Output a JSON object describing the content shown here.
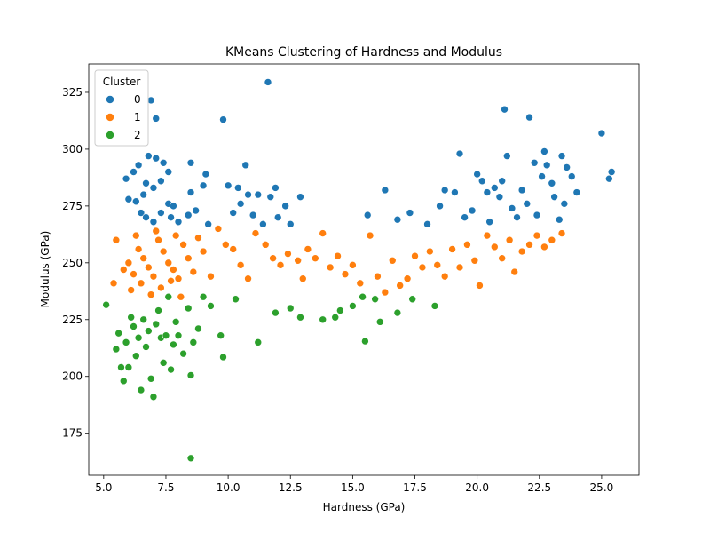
{
  "chart_data": {
    "type": "scatter",
    "title": "KMeans Clustering of Hardness and Modulus",
    "xlabel": "Hardness (GPa)",
    "ylabel": "Modulus (GPa)",
    "xlim": [
      4.4,
      26.5
    ],
    "ylim": [
      156.5,
      337.5
    ],
    "xticks": [
      "5.0",
      "7.5",
      "10.0",
      "12.5",
      "15.0",
      "17.5",
      "20.0",
      "22.5",
      "25.0"
    ],
    "yticks": [
      "175",
      "200",
      "225",
      "250",
      "275",
      "300",
      "325"
    ],
    "grid": false,
    "legend": {
      "title": "Cluster",
      "placement": "top-left"
    },
    "colors": {
      "0": "#1f77b4",
      "1": "#ff7f0e",
      "2": "#2ca02c"
    },
    "series": [
      {
        "name": "0",
        "points": [
          [
            6.9,
            321.5
          ],
          [
            7.1,
            313.5
          ],
          [
            11.6,
            329.5
          ],
          [
            9.8,
            313
          ],
          [
            5.9,
            287
          ],
          [
            6.2,
            290
          ],
          [
            6.4,
            293
          ],
          [
            6.8,
            297
          ],
          [
            7.1,
            296
          ],
          [
            7.4,
            294
          ],
          [
            7.6,
            290
          ],
          [
            6.0,
            278
          ],
          [
            6.3,
            277
          ],
          [
            6.6,
            280
          ],
          [
            6.7,
            285
          ],
          [
            7.0,
            283
          ],
          [
            7.3,
            286
          ],
          [
            7.6,
            276
          ],
          [
            7.8,
            275
          ],
          [
            6.5,
            272
          ],
          [
            6.7,
            270
          ],
          [
            7.0,
            268
          ],
          [
            7.3,
            272
          ],
          [
            7.7,
            270
          ],
          [
            8.0,
            268
          ],
          [
            8.4,
            271
          ],
          [
            8.5,
            281
          ],
          [
            8.5,
            294
          ],
          [
            9.1,
            289
          ],
          [
            9.0,
            284
          ],
          [
            8.7,
            273
          ],
          [
            9.2,
            267
          ],
          [
            10.0,
            284
          ],
          [
            10.2,
            272
          ],
          [
            10.4,
            283
          ],
          [
            10.5,
            276
          ],
          [
            10.7,
            293
          ],
          [
            10.8,
            280
          ],
          [
            11.0,
            271
          ],
          [
            11.2,
            280
          ],
          [
            11.4,
            267
          ],
          [
            11.7,
            279
          ],
          [
            11.9,
            283
          ],
          [
            12.0,
            270
          ],
          [
            12.3,
            275
          ],
          [
            12.5,
            267
          ],
          [
            12.9,
            279
          ],
          [
            15.6,
            271
          ],
          [
            16.3,
            282
          ],
          [
            16.8,
            269
          ],
          [
            17.3,
            272
          ],
          [
            18.0,
            267
          ],
          [
            18.5,
            275
          ],
          [
            18.7,
            282
          ],
          [
            19.1,
            281
          ],
          [
            19.3,
            298
          ],
          [
            19.5,
            270
          ],
          [
            19.8,
            273
          ],
          [
            20.0,
            289
          ],
          [
            20.2,
            286
          ],
          [
            20.4,
            281
          ],
          [
            20.5,
            268
          ],
          [
            20.7,
            283
          ],
          [
            20.9,
            279
          ],
          [
            21.0,
            286
          ],
          [
            21.1,
            317.5
          ],
          [
            21.2,
            297
          ],
          [
            21.4,
            274
          ],
          [
            21.6,
            270
          ],
          [
            21.8,
            282
          ],
          [
            22.0,
            276
          ],
          [
            22.1,
            314
          ],
          [
            22.3,
            294
          ],
          [
            22.4,
            271
          ],
          [
            22.6,
            288
          ],
          [
            22.7,
            299
          ],
          [
            22.8,
            293
          ],
          [
            23.0,
            285
          ],
          [
            23.1,
            279
          ],
          [
            23.3,
            269
          ],
          [
            23.4,
            297
          ],
          [
            23.5,
            276
          ],
          [
            23.6,
            292
          ],
          [
            23.8,
            288
          ],
          [
            24.0,
            281
          ],
          [
            25.0,
            307
          ],
          [
            25.3,
            287
          ],
          [
            25.4,
            290
          ]
        ]
      },
      {
        "name": "1",
        "points": [
          [
            5.5,
            260
          ],
          [
            5.8,
            247
          ],
          [
            5.4,
            241
          ],
          [
            6.0,
            250
          ],
          [
            6.2,
            245
          ],
          [
            6.4,
            256
          ],
          [
            6.6,
            252
          ],
          [
            6.8,
            248
          ],
          [
            7.0,
            244
          ],
          [
            7.2,
            260
          ],
          [
            7.4,
            255
          ],
          [
            7.6,
            250
          ],
          [
            7.8,
            247
          ],
          [
            8.0,
            243
          ],
          [
            8.2,
            258
          ],
          [
            8.4,
            252
          ],
          [
            8.6,
            246
          ],
          [
            6.1,
            238
          ],
          [
            6.5,
            241
          ],
          [
            6.9,
            236
          ],
          [
            7.3,
            239
          ],
          [
            7.7,
            242
          ],
          [
            8.1,
            235
          ],
          [
            6.3,
            262
          ],
          [
            7.1,
            264
          ],
          [
            7.9,
            262
          ],
          [
            8.8,
            261
          ],
          [
            9.0,
            255
          ],
          [
            9.3,
            244
          ],
          [
            9.6,
            265
          ],
          [
            9.9,
            258
          ],
          [
            10.2,
            256
          ],
          [
            10.5,
            249
          ],
          [
            10.8,
            243
          ],
          [
            11.1,
            263
          ],
          [
            11.5,
            258
          ],
          [
            11.8,
            252
          ],
          [
            12.1,
            249
          ],
          [
            12.4,
            254
          ],
          [
            12.8,
            251
          ],
          [
            13.0,
            243
          ],
          [
            13.2,
            256
          ],
          [
            13.5,
            252
          ],
          [
            13.8,
            263
          ],
          [
            14.1,
            248
          ],
          [
            14.4,
            253
          ],
          [
            14.7,
            245
          ],
          [
            15.0,
            249
          ],
          [
            15.3,
            241
          ],
          [
            15.7,
            262
          ],
          [
            16.0,
            244
          ],
          [
            16.3,
            237
          ],
          [
            16.6,
            251
          ],
          [
            16.9,
            240
          ],
          [
            17.2,
            243
          ],
          [
            17.5,
            253
          ],
          [
            17.8,
            248
          ],
          [
            18.1,
            255
          ],
          [
            18.4,
            249
          ],
          [
            18.7,
            244
          ],
          [
            19.0,
            256
          ],
          [
            19.3,
            248
          ],
          [
            19.6,
            258
          ],
          [
            19.9,
            251
          ],
          [
            20.1,
            240
          ],
          [
            20.4,
            262
          ],
          [
            20.7,
            257
          ],
          [
            21.0,
            252
          ],
          [
            21.3,
            260
          ],
          [
            21.5,
            246
          ],
          [
            21.8,
            255
          ],
          [
            22.1,
            258
          ],
          [
            22.4,
            262
          ],
          [
            22.7,
            257
          ],
          [
            23.0,
            260
          ],
          [
            23.4,
            263
          ]
        ]
      },
      {
        "name": "2",
        "points": [
          [
            5.1,
            231.5
          ],
          [
            5.5,
            212
          ],
          [
            5.6,
            219
          ],
          [
            5.7,
            204
          ],
          [
            5.8,
            198
          ],
          [
            5.9,
            215
          ],
          [
            6.0,
            204
          ],
          [
            6.1,
            226
          ],
          [
            6.2,
            222
          ],
          [
            6.3,
            209
          ],
          [
            6.4,
            217
          ],
          [
            6.5,
            194
          ],
          [
            6.6,
            225
          ],
          [
            6.7,
            213
          ],
          [
            6.8,
            220
          ],
          [
            6.9,
            199
          ],
          [
            7.0,
            191
          ],
          [
            7.1,
            223
          ],
          [
            7.2,
            229
          ],
          [
            7.3,
            217
          ],
          [
            7.4,
            206
          ],
          [
            7.5,
            218
          ],
          [
            7.6,
            235
          ],
          [
            7.7,
            203
          ],
          [
            7.8,
            214
          ],
          [
            7.9,
            224
          ],
          [
            8.0,
            218
          ],
          [
            8.2,
            210
          ],
          [
            8.4,
            230
          ],
          [
            8.5,
            200.5
          ],
          [
            8.6,
            215
          ],
          [
            8.8,
            221
          ],
          [
            9.0,
            235
          ],
          [
            9.3,
            231
          ],
          [
            9.7,
            218
          ],
          [
            9.8,
            208.5
          ],
          [
            10.3,
            234
          ],
          [
            11.2,
            215
          ],
          [
            11.9,
            228
          ],
          [
            12.5,
            230
          ],
          [
            12.9,
            226
          ],
          [
            13.8,
            225
          ],
          [
            14.3,
            226
          ],
          [
            14.5,
            229
          ],
          [
            15.0,
            231
          ],
          [
            15.4,
            235
          ],
          [
            15.5,
            215.5
          ],
          [
            15.9,
            234
          ],
          [
            16.1,
            224
          ],
          [
            16.8,
            228
          ],
          [
            17.4,
            234
          ],
          [
            18.3,
            231
          ],
          [
            8.5,
            164
          ]
        ]
      }
    ]
  }
}
